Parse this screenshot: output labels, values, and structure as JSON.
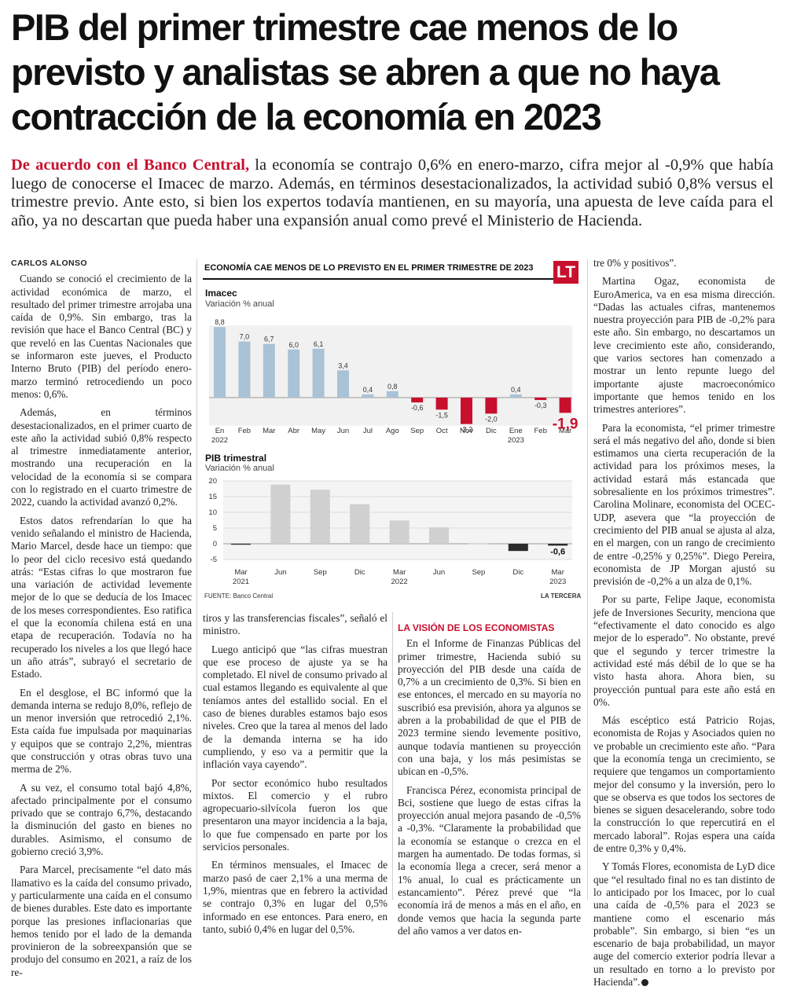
{
  "headline": "PIB del primer trimestre cae menos de lo previsto y analistas se abren a que no haya contracción de la economía en 2023",
  "lead": {
    "kicker": "De acuerdo con el Banco Central,",
    "text": " la economía se contrajo 0,6% en enero-marzo, cifra mejor al -0,9% que había luego de conocerse el Imacec de marzo. Además, en términos desestacionalizados, la actividad subió 0,8% versus el trimestre previo. Ante esto, si bien los expertos todavía mantienen, en su mayoría, una apuesta de leve caída para el año, ya no descartan que pueda haber una expansión anual como prevé el Ministerio de Hacienda."
  },
  "byline": "CARLOS ALONSO",
  "col1": [
    "Cuando se conoció el crecimiento de la actividad económica de marzo, el resultado del primer trimestre arrojaba una caída de 0,9%. Sin embargo, tras la revisión que hace el Banco Central (BC) y que reveló en las Cuentas Nacionales que se informaron este jueves, el Producto Interno Bruto (PIB) del período enero-marzo terminó retrocediendo un poco menos: 0,6%.",
    "Además, en términos desestacionalizados, en el primer cuarto de este año la actividad subió 0,8% respecto al trimestre inmediatamente anterior, mostrando una recuperación en la velocidad de la economía si se compara con lo registrado en el cuarto trimestre de 2022, cuando la actividad avanzó 0,2%.",
    "Estos datos refrendarían lo que ha venido señalando el ministro de Hacienda, Mario Marcel, desde hace un tiempo: que lo peor del ciclo recesivo está quedando atrás: “Estas cifras lo que mostraron fue una variación de actividad levemente mejor de lo que se deducía de los Imacec de los meses correspondientes. Eso ratifica el que la economía chilena está en una etapa de recuperación. Todavía no ha recuperado los niveles a los que llegó hace un año atrás”, subrayó el secretario de Estado.",
    "En el desglose, el BC informó que la demanda interna se redujo 8,0%, reflejo de un menor inversión que retrocedió 2,1%. Esta caída fue impulsada por maquinarias y equipos que se contrajo 2,2%, mientras que construcción y otras obras tuvo una merma de 2%.",
    "A su vez, el consumo total bajó 4,8%, afectado principalmente por el consumo privado que se contrajo 6,7%, destacando la disminución del gasto en bienes no durables. Asimismo, el consumo de gobierno creció 3,9%.",
    "Para Marcel, precisamente “el dato más llamativo es la caída del consumo privado, y particularmente una caída en el consumo de bienes durables. Este dato es importante porque las presiones inflacionarias que hemos tenido por el lado de la demanda provinieron de la sobreexpansión que se produjo del consumo en 2021, a raíz de los re-"
  ],
  "col2": [
    "tiros y las transferencias fiscales”, señaló el ministro.",
    "Luego anticipó que “las cifras muestran que ese proceso de ajuste ya se ha completado. El nivel de consumo privado al cual estamos llegando es equivalente al que teníamos antes del estallido social. En el caso de bienes durables estamos bajo esos niveles. Creo que la tarea al menos del lado de la demanda interna se ha ido cumpliendo, y eso va a permitir que la inflación vaya cayendo”.",
    "Por sector económico hubo resultados mixtos. El comercio y el rubro agropecuario-silvícola fueron los que presentaron una mayor incidencia a la baja, lo que fue compensado en parte por los servicios personales.",
    "En términos mensuales, el Imacec de marzo pasó de caer 2,1% a una merma de 1,9%, mientras que en febrero la actividad se contrajo 0,3% en lugar del 0,5% informado en ese entonces. Para enero, en tanto, subió 0,4% en lugar del 0,5%."
  ],
  "col3_subhead": "LA VISIÓN DE LOS ECONOMISTAS",
  "col3": [
    "En el Informe de Finanzas Públicas del primer trimestre, Hacienda subió su proyección del PIB desde una caída de 0,7% a un crecimiento de 0,3%. Si bien en ese entonces, el mercado en su mayoría no suscribió esa previsión, ahora ya algunos se abren a la probabilidad de que el PIB de 2023 termine siendo levemente positivo, aunque todavía mantienen su proyección con una baja, y los más pesimistas se ubican en -0,5%.",
    "Francisca Pérez, economista principal de Bci, sostiene que luego de estas cifras la proyección anual mejora pasando de -0,5% a -0,3%. “Claramente la probabilidad que la economía se estanque o crezca en el margen ha aumentado. De todas formas, si la economía llega a crecer, será menor a 1% anual, lo cual es prácticamente un estancamiento”. Pérez prevé que “la economía irá de menos a más en el año, en donde vemos que hacia la segunda parte del año vamos a ver datos en-"
  ],
  "col4": [
    "tre 0% y positivos”.",
    "Martina Ogaz, economista de EuroAmerica, va en esa misma dirección. “Dadas las actuales cifras, mantenemos nuestra proyección para PIB de -0,2% para este año. Sin embargo, no descartamos un leve crecimiento este año, considerando, que varios sectores han comenzado a mostrar un lento repunte luego del importante ajuste macroeconómico importante que hemos tenido en los trimestres anteriores”.",
    "Para la economista, “el primer trimestre será el más negativo del año, donde si bien estimamos una cierta recuperación de la actividad para los próximos meses, la actividad estará más estancada que sobresaliente en los próximos trimestres”. Carolina Molinare, economista del OCEC-UDP, asevera que “la proyección de crecimiento del PIB anual se ajusta al alza, en el margen, con un rango de crecimiento de entre -0,25% y 0,25%”. Diego Pereira, economista de JP Morgan ajustó su previsión de -0,2% a un alza de 0,1%.",
    "Por su parte, Felipe Jaque, economista jefe de Inversiones Security, menciona que “efectivamente el dato conocido es algo mejor de lo esperado”. No obstante, prevé que el segundo y tercer trimestre la actividad esté más débil de lo que se ha visto hasta ahora. Ahora bien, su proyección puntual para este año está en 0%.",
    "Más escéptico está Patricio Rojas, economista de Rojas y Asociados quien no ve probable un crecimiento este año. “Para que la economía tenga un crecimiento, se requiere que tengamos un comportamiento mejor del consumo y la inversión, pero lo que se observa es que todos los sectores de bienes se siguen desacelerando, sobre todo la construcción lo que repercutirá en el mercado laboral”. Rojas espera una caída de entre 0,3% y 0,4%.",
    "Y Tomás Flores, economista de LyD dice que “el resultado final no es tan distinto de lo anticipado por los Imacec, por lo cual una caída de -0,5% para el 2023 se mantiene como el escenario más probable”. Sin embargo, si bien “es un escenario de baja probabilidad, un mayor auge del comercio exterior podría llevar a un resultado en torno a lo previsto por Hacienda”."
  ],
  "chart_header": {
    "title": "ECONOMÍA CAE MENOS DE LO PREVISTO EN EL PRIMER TRIMESTRE DE 2023",
    "logo": "LT",
    "source": "FUENTE: Banco Central",
    "brand": "LA TERCERA"
  },
  "chart_data": [
    {
      "type": "bar",
      "title": "Imacec",
      "subtitle": "Variación % anual",
      "categories": [
        "En",
        "Feb",
        "Mar",
        "Abr",
        "May",
        "Jun",
        "Jul",
        "Ago",
        "Sep",
        "Oct",
        "Nov",
        "Dic",
        "Ene",
        "Feb",
        "Mar"
      ],
      "year_labels": [
        {
          "index": 0,
          "label": "2022"
        },
        {
          "index": 12,
          "label": "2023"
        }
      ],
      "values": [
        8.8,
        7.0,
        6.7,
        6.0,
        6.1,
        3.4,
        0.4,
        0.8,
        -0.6,
        -1.5,
        -3.3,
        -2.0,
        0.4,
        -0.3,
        -1.9
      ],
      "value_labels": [
        "8,8",
        "7,0",
        "6,7",
        "6,0",
        "6,1",
        "3,4",
        "0,4",
        "0,8",
        "-0,6",
        "-1,5",
        "-3,3",
        "-2,0",
        "0,4",
        "-0,3",
        "-1,9"
      ],
      "highlight_last": true,
      "colors": {
        "positive": "#a9c2d6",
        "negative": "#c8102e"
      }
    },
    {
      "type": "bar",
      "title": "PIB trimestral",
      "subtitle": "Variación % anual",
      "categories": [
        "Mar",
        "Jun",
        "Sep",
        "Dic",
        "Mar",
        "Jun",
        "Sep",
        "Dic",
        "Mar"
      ],
      "year_labels": [
        {
          "index": 0,
          "label": "2021"
        },
        {
          "index": 4,
          "label": "2022"
        },
        {
          "index": 8,
          "label": "2023"
        }
      ],
      "values": [
        -0.3,
        18.8,
        17.2,
        12.6,
        7.4,
        5.2,
        0.2,
        -2.3,
        -0.6
      ],
      "value_labels": [
        "",
        "",
        "",
        "",
        "",
        "",
        "",
        "",
        "-0,6"
      ],
      "ylim": [
        -5,
        20
      ],
      "yticks": [
        "20",
        "15",
        "10",
        "5",
        "0",
        "-5"
      ],
      "colors": {
        "positive": "#d0d0d0",
        "negative": "#2b2b2b"
      }
    }
  ]
}
